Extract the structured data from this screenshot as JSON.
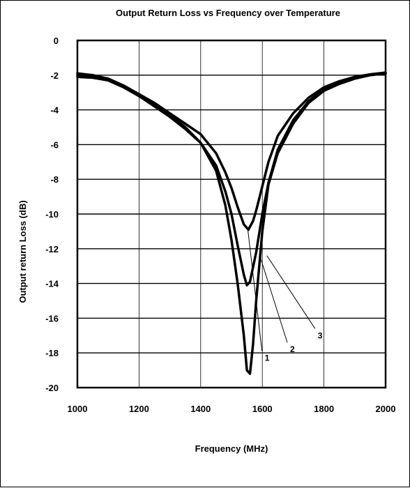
{
  "chart_data": {
    "type": "line",
    "title": "Output Return Loss vs Frequency over Temperature",
    "xlabel": "Frequency (MHz)",
    "ylabel": "Output return Loss (dB)",
    "xlim": [
      1000,
      2000
    ],
    "ylim": [
      -20,
      0
    ],
    "x_ticks": [
      "1000",
      "1200",
      "1400",
      "1600",
      "1800",
      "2000"
    ],
    "y_ticks": [
      "0",
      "-2",
      "-4",
      "-6",
      "-8",
      "-10",
      "-12",
      "-14",
      "-16",
      "-18",
      "-20"
    ],
    "x_tick_values": [
      1000,
      1200,
      1400,
      1600,
      1800,
      2000
    ],
    "y_tick_values": [
      0,
      -2,
      -4,
      -6,
      -8,
      -10,
      -12,
      -14,
      -16,
      -18,
      -20
    ],
    "grid": true,
    "series": [
      {
        "name": "1",
        "color": "#000000",
        "x": [
          1000,
          1050,
          1100,
          1150,
          1200,
          1250,
          1300,
          1350,
          1400,
          1450,
          1480,
          1500,
          1520,
          1540,
          1550,
          1560,
          1570,
          1580,
          1600,
          1620,
          1650,
          1700,
          1750,
          1800,
          1850,
          1900,
          1950,
          2000
        ],
        "y": [
          -2.1,
          -2.15,
          -2.3,
          -2.7,
          -3.2,
          -3.7,
          -4.3,
          -5.0,
          -5.9,
          -7.5,
          -9.5,
          -11.5,
          -14.0,
          -17.0,
          -19.0,
          -19.2,
          -17.5,
          -15.0,
          -11.0,
          -8.3,
          -6.5,
          -4.8,
          -3.6,
          -2.9,
          -2.5,
          -2.2,
          -2.0,
          -1.9
        ]
      },
      {
        "name": "2",
        "color": "#000000",
        "x": [
          1000,
          1050,
          1100,
          1150,
          1200,
          1250,
          1300,
          1350,
          1400,
          1450,
          1480,
          1500,
          1520,
          1540,
          1550,
          1560,
          1580,
          1600,
          1620,
          1650,
          1700,
          1750,
          1800,
          1850,
          1900,
          1950,
          2000
        ],
        "y": [
          -2.0,
          -2.1,
          -2.3,
          -2.7,
          -3.2,
          -3.8,
          -4.4,
          -5.1,
          -5.9,
          -7.2,
          -8.7,
          -10.0,
          -11.8,
          -13.5,
          -14.1,
          -13.9,
          -12.2,
          -10.0,
          -8.2,
          -6.3,
          -4.6,
          -3.5,
          -2.8,
          -2.4,
          -2.15,
          -2.0,
          -1.9
        ]
      },
      {
        "name": "3",
        "color": "#000000",
        "x": [
          1000,
          1050,
          1100,
          1150,
          1200,
          1250,
          1300,
          1350,
          1400,
          1450,
          1480,
          1500,
          1520,
          1540,
          1555,
          1570,
          1580,
          1600,
          1620,
          1650,
          1700,
          1750,
          1800,
          1850,
          1900,
          1950,
          2000
        ],
        "y": [
          -1.9,
          -2.0,
          -2.2,
          -2.6,
          -3.1,
          -3.6,
          -4.2,
          -4.8,
          -5.4,
          -6.5,
          -7.6,
          -8.5,
          -9.6,
          -10.6,
          -10.9,
          -10.4,
          -9.8,
          -8.4,
          -7.0,
          -5.5,
          -4.2,
          -3.3,
          -2.7,
          -2.35,
          -2.1,
          -1.95,
          -1.85
        ]
      }
    ],
    "annotations": [
      {
        "text": "1",
        "at": [
          1608,
          -18.3
        ],
        "points_to": [
          1553,
          -10.9
        ]
      },
      {
        "text": "2",
        "at": [
          1690,
          -17.8
        ],
        "points_to": [
          1590,
          -12.3
        ]
      },
      {
        "text": "3",
        "at": [
          1780,
          -17.0
        ],
        "points_to": [
          1615,
          -12.4
        ]
      }
    ]
  }
}
